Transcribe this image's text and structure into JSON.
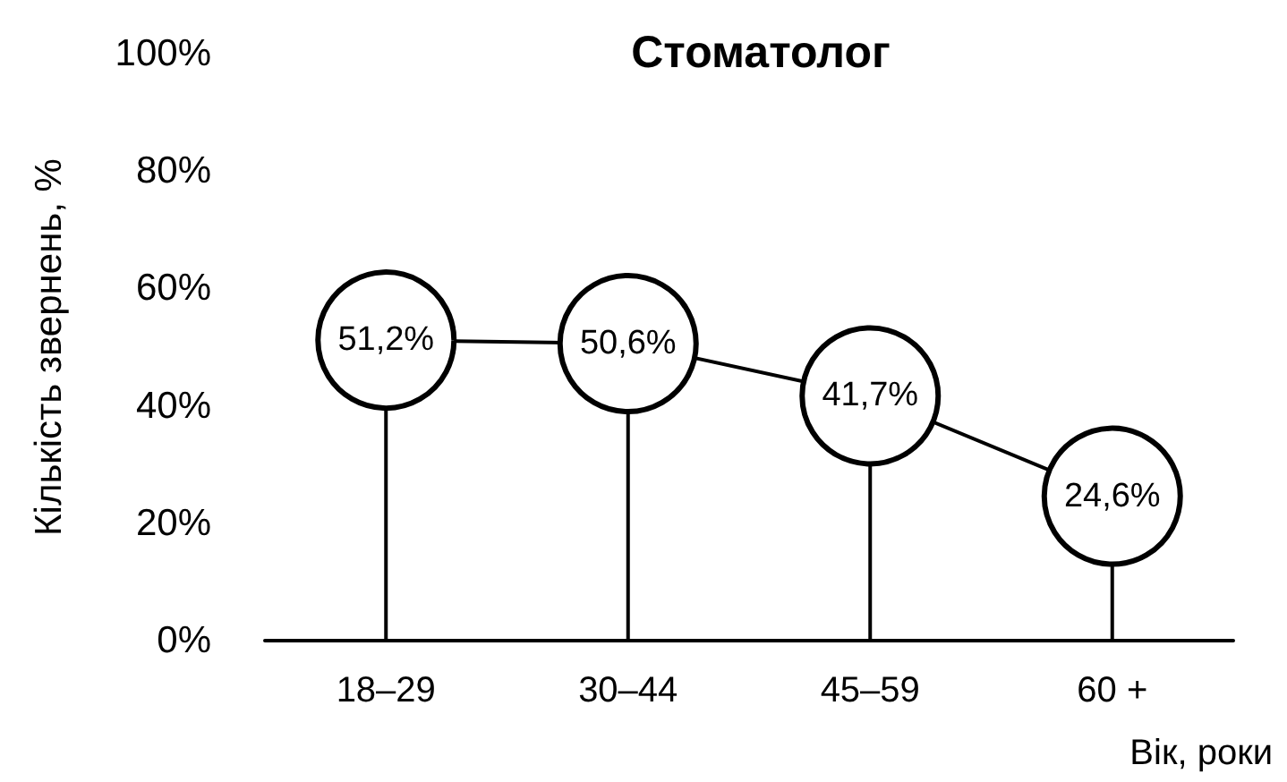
{
  "chart_data": {
    "type": "lollipop",
    "title": "Стоматолог",
    "xlabel": "Вік, роки",
    "ylabel": "Кількість звернень, %",
    "categories": [
      "18–29",
      "30–44",
      "45–59",
      "60 +"
    ],
    "values": [
      51.2,
      50.6,
      41.7,
      24.6
    ],
    "value_labels": [
      "51,2%",
      "50,6%",
      "41,7%",
      "24,6%"
    ],
    "color": "#000000",
    "ylim": [
      0,
      100
    ],
    "yticks": [
      {
        "value": 0,
        "label": "0%"
      },
      {
        "value": 20,
        "label": "20%"
      },
      {
        "value": 40,
        "label": "40%"
      },
      {
        "value": 60,
        "label": "60%"
      },
      {
        "value": 80,
        "label": "80%"
      },
      {
        "value": 100,
        "label": "100%"
      }
    ],
    "line_style": "solid",
    "marker": "circle"
  }
}
